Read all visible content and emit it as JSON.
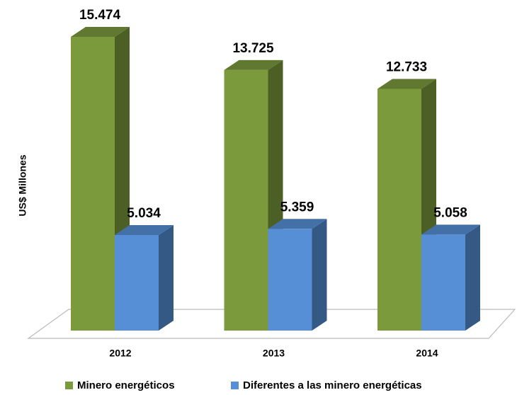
{
  "chart_data": {
    "type": "bar3d",
    "y_label": "US$ Millones",
    "categories": [
      "2012",
      "2013",
      "2014"
    ],
    "series": [
      {
        "name": "Minero energéticos",
        "color": "#7b9a3c",
        "values": [
          15474,
          13725,
          12733
        ],
        "value_labels": [
          "15.474",
          "13.725",
          "12.733"
        ]
      },
      {
        "name": "Diferentes a las minero energéticas",
        "color": "#568fd6",
        "values": [
          5034,
          5359,
          5058
        ],
        "value_labels": [
          "5.034",
          "5.359",
          "5.058"
        ]
      }
    ],
    "legend": "bottom"
  }
}
